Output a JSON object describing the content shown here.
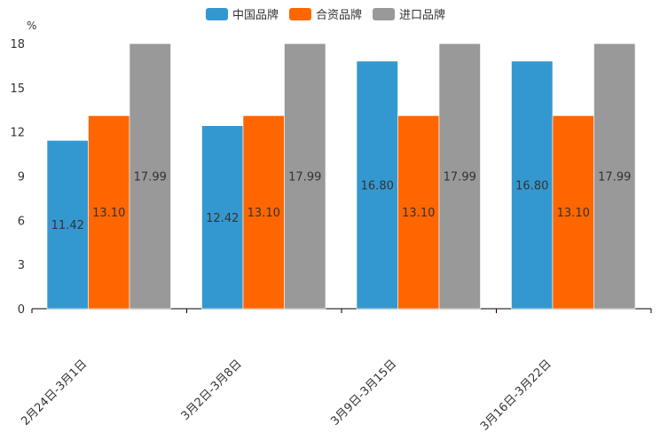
{
  "chart_data": {
    "type": "bar",
    "title": "",
    "ylabel": "%",
    "xlabel": "",
    "ylim": [
      0,
      18
    ],
    "yticks": [
      0,
      3,
      6,
      9,
      12,
      15,
      18
    ],
    "categories": [
      "2月24日-3月1日",
      "3月2日-3月8日",
      "3月9日-3月15日",
      "3月16日-3月22日"
    ],
    "series": [
      {
        "name": "中国品牌",
        "color": "#3498d0",
        "values": [
          11.42,
          12.42,
          16.8,
          16.8
        ],
        "labels": [
          "11.42",
          "12.42",
          "16.80",
          "16.80"
        ]
      },
      {
        "name": "合资品牌",
        "color": "#ff6600",
        "values": [
          13.1,
          13.1,
          13.1,
          13.1
        ],
        "labels": [
          "13.10",
          "13.10",
          "13.10",
          "13.10"
        ]
      },
      {
        "name": "进口品牌",
        "color": "#999999",
        "values": [
          17.99,
          17.99,
          17.99,
          17.99
        ],
        "labels": [
          "17.99",
          "17.99",
          "17.99",
          "17.99"
        ]
      }
    ],
    "legend_position": "top-center",
    "grid": false
  }
}
